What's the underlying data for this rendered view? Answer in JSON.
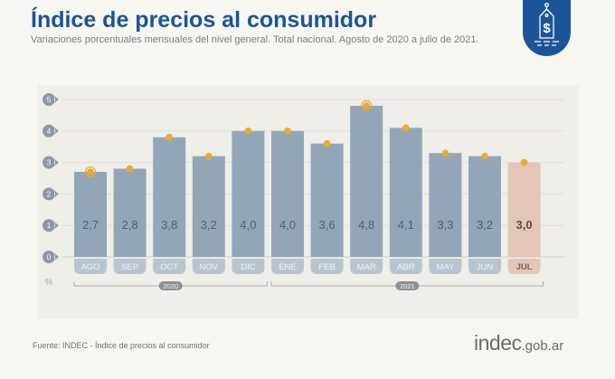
{
  "header": {
    "title": "Índice de precios al consumidor",
    "subtitle": "Variaciones porcentuales mensuales del nivel general. Total nacional. Agosto de 2020 a julio de 2021.",
    "badge_icon": "price-tag-dollar-icon"
  },
  "footer": {
    "source": "Fuente: INDEC - Índice de precios al consumidor",
    "logo_main": "indec",
    "logo_suffix": ".gob.ar"
  },
  "colors": {
    "brand": "#1b5597",
    "bar": "#93a6b7",
    "bar_highlight": "#e4c6b8",
    "marker": "#eea92a",
    "axis_badge": "#8e97a6"
  },
  "chart_data": {
    "type": "bar",
    "title": "Índice de precios al consumidor",
    "subtitle": "Variaciones porcentuales mensuales del nivel general. Total nacional. Agosto de 2020 a julio de 2021.",
    "xlabel": "",
    "ylabel": "%",
    "ylim": [
      0,
      5
    ],
    "yticks": [
      0,
      1,
      2,
      3,
      4,
      5
    ],
    "grid": true,
    "categories": [
      "AGO",
      "SEP",
      "OCT",
      "NOV",
      "DIC",
      "ENE",
      "FEB",
      "MAR",
      "ABR",
      "MAY",
      "JUN",
      "JUL"
    ],
    "values": [
      2.7,
      2.8,
      3.8,
      3.2,
      4.0,
      4.0,
      3.6,
      4.8,
      4.1,
      3.3,
      3.2,
      3.0
    ],
    "value_labels": [
      "2,7",
      "2,8",
      "3,8",
      "3,2",
      "4,0",
      "4,0",
      "3,6",
      "4,8",
      "4,1",
      "3,3",
      "3,2",
      "3,0"
    ],
    "highlight_index": 11,
    "ringed_markers": [
      0,
      7
    ],
    "year_groups": [
      {
        "label": "2020",
        "from": 0,
        "to": 4
      },
      {
        "label": "2021",
        "from": 5,
        "to": 11
      }
    ]
  }
}
